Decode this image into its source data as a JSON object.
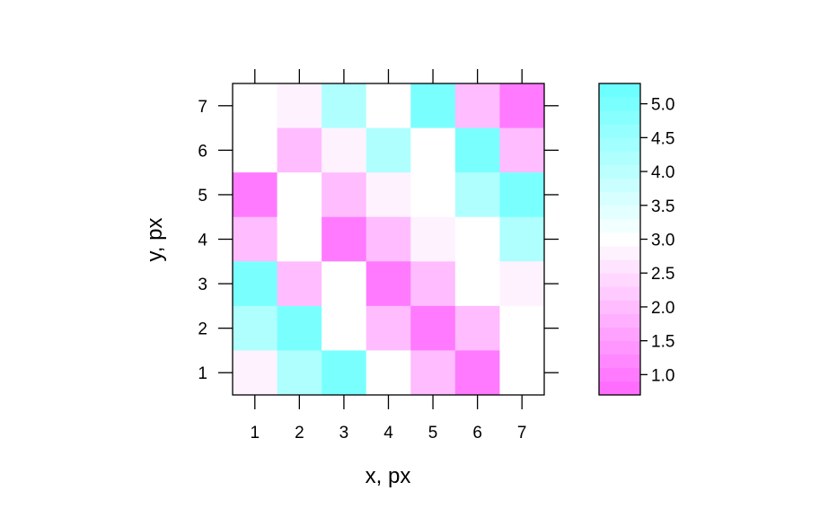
{
  "chart_data": {
    "type": "heatmap",
    "title": "",
    "xlabel": "x, px",
    "ylabel": "y, px",
    "x": [
      1,
      2,
      3,
      4,
      5,
      6,
      7
    ],
    "y": [
      1,
      2,
      3,
      4,
      5,
      6,
      7
    ],
    "xlim": [
      0.5,
      7.5
    ],
    "ylim": [
      0.5,
      7.5
    ],
    "x_ticks": [
      "1",
      "2",
      "3",
      "4",
      "5",
      "6",
      "7"
    ],
    "y_ticks": [
      "1",
      "2",
      "3",
      "4",
      "5",
      "6",
      "7"
    ],
    "values_by_row_top_to_bottom": [
      [
        3.0,
        2.8,
        4.2,
        3.0,
        5.0,
        2.0,
        1.0
      ],
      [
        3.0,
        2.0,
        2.8,
        4.2,
        3.0,
        5.0,
        2.0
      ],
      [
        1.0,
        3.0,
        2.0,
        2.8,
        3.0,
        4.2,
        5.0
      ],
      [
        2.0,
        3.0,
        1.0,
        2.0,
        2.8,
        3.0,
        4.2
      ],
      [
        5.0,
        2.0,
        3.0,
        1.0,
        2.0,
        3.0,
        2.8
      ],
      [
        4.2,
        5.0,
        3.0,
        2.0,
        1.0,
        2.0,
        3.0
      ],
      [
        2.8,
        4.2,
        5.0,
        3.0,
        2.0,
        1.0,
        3.0
      ]
    ],
    "colorbar": {
      "range": [
        0.7,
        5.3
      ],
      "ticks": [
        "1.0",
        "1.5",
        "2.0",
        "2.5",
        "3.0",
        "3.5",
        "4.0",
        "4.5",
        "5.0"
      ],
      "tick_values": [
        1.0,
        1.5,
        2.0,
        2.5,
        3.0,
        3.5,
        4.0,
        4.5,
        5.0
      ],
      "low_color": "#ff66ff",
      "mid_color": "#ffffff",
      "high_color": "#66ffff",
      "mid_value": 3.0
    },
    "grid": false,
    "legend": "right"
  }
}
